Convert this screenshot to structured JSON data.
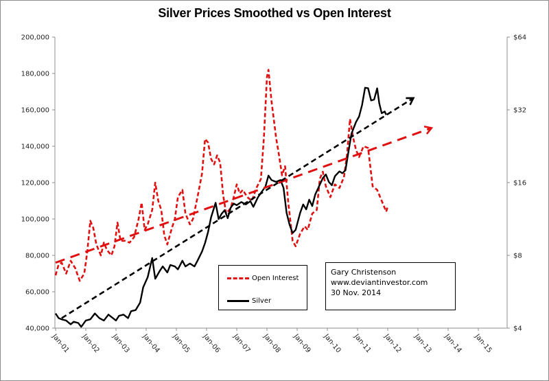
{
  "chart_data": {
    "type": "line",
    "title": "Silver Prices Smoothed vs Open Interest",
    "xlabel": "",
    "ylabel_left": "",
    "ylabel_right": "",
    "x_ticks": [
      "Jan-01",
      "Jan-02",
      "Jan-03",
      "Jan-04",
      "Jan-05",
      "Jan-06",
      "Jan-07",
      "Jan-08",
      "Jan-09",
      "Jan-10",
      "Jan-11",
      "Jan-12",
      "Jan-13",
      "Jan-14",
      "Jan-15"
    ],
    "x_range": [
      2001,
      2016
    ],
    "y_left": {
      "ticks": [
        "40,000",
        "60,000",
        "80,000",
        "100,000",
        "120,000",
        "140,000",
        "160,000",
        "180,000",
        "200,000"
      ],
      "range": [
        40000,
        200000
      ],
      "scale": "linear"
    },
    "y_right": {
      "ticks": [
        "$4",
        "$8",
        "$16",
        "$32",
        "$64"
      ],
      "range": [
        4,
        64
      ],
      "scale": "log2"
    },
    "grid": false,
    "series": [
      {
        "name": "Open Interest",
        "axis": "left",
        "color": "#e01010",
        "style": "dashed",
        "points": [
          [
            2001.0,
            69000
          ],
          [
            2001.1,
            75000
          ],
          [
            2001.2,
            76000
          ],
          [
            2001.35,
            70000
          ],
          [
            2001.5,
            77000
          ],
          [
            2001.65,
            73000
          ],
          [
            2001.8,
            66000
          ],
          [
            2001.95,
            70000
          ],
          [
            2002.05,
            82000
          ],
          [
            2002.15,
            99000
          ],
          [
            2002.25,
            95000
          ],
          [
            2002.35,
            86000
          ],
          [
            2002.5,
            80000
          ],
          [
            2002.6,
            87000
          ],
          [
            2002.7,
            83000
          ],
          [
            2002.85,
            80000
          ],
          [
            2002.95,
            85000
          ],
          [
            2003.05,
            98000
          ],
          [
            2003.15,
            88000
          ],
          [
            2003.3,
            88000
          ],
          [
            2003.45,
            87000
          ],
          [
            2003.6,
            90000
          ],
          [
            2003.75,
            100000
          ],
          [
            2003.85,
            109000
          ],
          [
            2003.95,
            94000
          ],
          [
            2004.05,
            97000
          ],
          [
            2004.2,
            105000
          ],
          [
            2004.3,
            120000
          ],
          [
            2004.4,
            110000
          ],
          [
            2004.5,
            105000
          ],
          [
            2004.6,
            91000
          ],
          [
            2004.7,
            86000
          ],
          [
            2004.85,
            95000
          ],
          [
            2004.95,
            100000
          ],
          [
            2005.05,
            112000
          ],
          [
            2005.2,
            116000
          ],
          [
            2005.3,
            103000
          ],
          [
            2005.45,
            97000
          ],
          [
            2005.55,
            100000
          ],
          [
            2005.7,
            112000
          ],
          [
            2005.85,
            125000
          ],
          [
            2005.95,
            144000
          ],
          [
            2006.05,
            142000
          ],
          [
            2006.15,
            133000
          ],
          [
            2006.25,
            130000
          ],
          [
            2006.35,
            135000
          ],
          [
            2006.45,
            131000
          ],
          [
            2006.55,
            113000
          ],
          [
            2006.65,
            103000
          ],
          [
            2006.8,
            106000
          ],
          [
            2006.9,
            112000
          ],
          [
            2007.0,
            119000
          ],
          [
            2007.1,
            114000
          ],
          [
            2007.2,
            116000
          ],
          [
            2007.35,
            112000
          ],
          [
            2007.5,
            110000
          ],
          [
            2007.65,
            117000
          ],
          [
            2007.8,
            122000
          ],
          [
            2007.9,
            145000
          ],
          [
            2008.0,
            178000
          ],
          [
            2008.05,
            182000
          ],
          [
            2008.15,
            165000
          ],
          [
            2008.3,
            145000
          ],
          [
            2008.4,
            135000
          ],
          [
            2008.5,
            124000
          ],
          [
            2008.6,
            129000
          ],
          [
            2008.7,
            110000
          ],
          [
            2008.85,
            88000
          ],
          [
            2008.95,
            85000
          ],
          [
            2009.1,
            92000
          ],
          [
            2009.25,
            96000
          ],
          [
            2009.35,
            94000
          ],
          [
            2009.5,
            103000
          ],
          [
            2009.65,
            105000
          ],
          [
            2009.75,
            122000
          ],
          [
            2009.85,
            126000
          ],
          [
            2009.95,
            118000
          ],
          [
            2010.1,
            112000
          ],
          [
            2010.25,
            119000
          ],
          [
            2010.4,
            117000
          ],
          [
            2010.55,
            123000
          ],
          [
            2010.65,
            135000
          ],
          [
            2010.75,
            155000
          ],
          [
            2010.85,
            145000
          ],
          [
            2010.95,
            138000
          ],
          [
            2011.05,
            134000
          ],
          [
            2011.2,
            140000
          ],
          [
            2011.35,
            139000
          ],
          [
            2011.5,
            118000
          ],
          [
            2011.65,
            116000
          ],
          [
            2011.8,
            110000
          ],
          [
            2011.95,
            104000
          ],
          [
            2012.0,
            107000
          ]
        ]
      },
      {
        "name": "Silver",
        "axis": "right",
        "color": "#000000",
        "style": "solid",
        "points": [
          [
            2001.0,
            4.6
          ],
          [
            2001.1,
            4.4
          ],
          [
            2001.2,
            4.35
          ],
          [
            2001.35,
            4.3
          ],
          [
            2001.5,
            4.15
          ],
          [
            2001.6,
            4.25
          ],
          [
            2001.75,
            4.2
          ],
          [
            2001.85,
            4.05
          ],
          [
            2002.0,
            4.3
          ],
          [
            2002.15,
            4.35
          ],
          [
            2002.3,
            4.6
          ],
          [
            2002.45,
            4.4
          ],
          [
            2002.6,
            4.3
          ],
          [
            2002.75,
            4.55
          ],
          [
            2002.9,
            4.4
          ],
          [
            2003.0,
            4.3
          ],
          [
            2003.1,
            4.5
          ],
          [
            2003.25,
            4.55
          ],
          [
            2003.4,
            4.4
          ],
          [
            2003.5,
            4.7
          ],
          [
            2003.65,
            4.75
          ],
          [
            2003.8,
            5.1
          ],
          [
            2003.9,
            5.9
          ],
          [
            2004.05,
            6.5
          ],
          [
            2004.2,
            7.8
          ],
          [
            2004.3,
            6.4
          ],
          [
            2004.45,
            6.9
          ],
          [
            2004.55,
            7.2
          ],
          [
            2004.7,
            6.8
          ],
          [
            2004.8,
            7.3
          ],
          [
            2004.95,
            7.2
          ],
          [
            2005.05,
            7.0
          ],
          [
            2005.2,
            7.6
          ],
          [
            2005.3,
            7.2
          ],
          [
            2005.45,
            7.4
          ],
          [
            2005.6,
            7.2
          ],
          [
            2005.7,
            7.6
          ],
          [
            2005.85,
            8.3
          ],
          [
            2005.95,
            9.0
          ],
          [
            2006.05,
            10.0
          ],
          [
            2006.15,
            11.5
          ],
          [
            2006.3,
            13.2
          ],
          [
            2006.4,
            11.3
          ],
          [
            2006.5,
            11.9
          ],
          [
            2006.6,
            12.3
          ],
          [
            2006.7,
            11.4
          ],
          [
            2006.8,
            12.6
          ],
          [
            2006.9,
            13.1
          ],
          [
            2007.0,
            12.9
          ],
          [
            2007.15,
            13.3
          ],
          [
            2007.3,
            13.0
          ],
          [
            2007.45,
            13.4
          ],
          [
            2007.55,
            12.7
          ],
          [
            2007.7,
            13.9
          ],
          [
            2007.8,
            14.5
          ],
          [
            2007.95,
            15.4
          ],
          [
            2008.05,
            17.1
          ],
          [
            2008.15,
            16.4
          ],
          [
            2008.3,
            16.1
          ],
          [
            2008.45,
            16.4
          ],
          [
            2008.55,
            15.2
          ],
          [
            2008.65,
            12.0
          ],
          [
            2008.75,
            10.7
          ],
          [
            2008.85,
            9.9
          ],
          [
            2008.95,
            10.2
          ],
          [
            2009.1,
            12.0
          ],
          [
            2009.2,
            13.0
          ],
          [
            2009.3,
            12.4
          ],
          [
            2009.4,
            13.6
          ],
          [
            2009.5,
            12.8
          ],
          [
            2009.6,
            14.3
          ],
          [
            2009.7,
            15.2
          ],
          [
            2009.85,
            16.7
          ],
          [
            2009.95,
            17.3
          ],
          [
            2010.05,
            16.1
          ],
          [
            2010.15,
            15.6
          ],
          [
            2010.25,
            17.0
          ],
          [
            2010.4,
            17.8
          ],
          [
            2010.5,
            17.5
          ],
          [
            2010.6,
            18.0
          ],
          [
            2010.7,
            21.5
          ],
          [
            2010.8,
            25.5
          ],
          [
            2010.95,
            28.5
          ],
          [
            2011.05,
            30.0
          ],
          [
            2011.15,
            33.5
          ],
          [
            2011.25,
            39.5
          ],
          [
            2011.35,
            39.3
          ],
          [
            2011.45,
            35.0
          ],
          [
            2011.55,
            35.3
          ],
          [
            2011.65,
            39.3
          ],
          [
            2011.72,
            34.0
          ],
          [
            2011.8,
            31.0
          ],
          [
            2011.9,
            31.5
          ],
          [
            2011.95,
            30.5
          ]
        ]
      },
      {
        "name": "Open Interest trend",
        "axis": "left",
        "color": "#e01010",
        "style": "dashed-arrow",
        "points": [
          [
            2001.0,
            76000
          ],
          [
            2013.45,
            150000
          ]
        ]
      },
      {
        "name": "Silver trend",
        "axis": "right",
        "color": "#000000",
        "style": "dashed-arrow",
        "points": [
          [
            2001.2,
            4.4
          ],
          [
            2012.85,
            35.8
          ]
        ]
      }
    ],
    "legend": {
      "placement": "bottom-center",
      "entries": [
        {
          "label": "Open Interest",
          "style": "dashed",
          "color": "#e01010"
        },
        {
          "label": "Silver",
          "style": "solid",
          "color": "#000000"
        }
      ]
    },
    "annotation": {
      "lines": [
        "Gary Christenson",
        "www.deviantinvestor.com",
        "30 Nov. 2014"
      ]
    }
  }
}
